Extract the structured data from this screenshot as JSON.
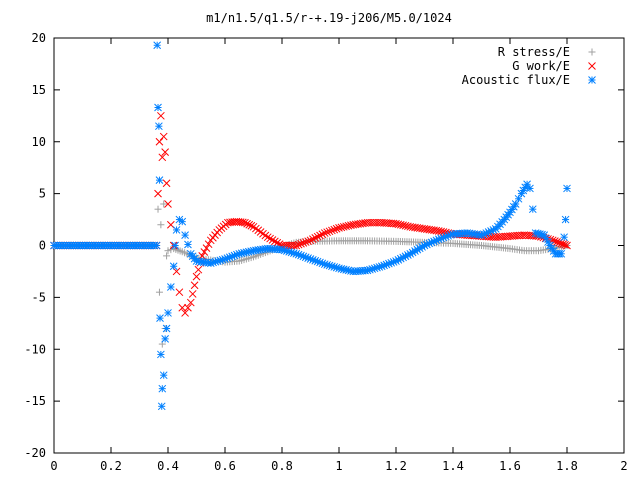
{
  "chart_data": {
    "type": "scatter",
    "title": "m1/n1.5/q1.5/r-+.19-j206/M5.0/1024",
    "xlim": [
      0,
      2
    ],
    "ylim": [
      -20,
      20
    ],
    "xticks": [
      "0",
      "0.2",
      "0.4",
      "0.6",
      "0.8",
      "1",
      "1.2",
      "1.4",
      "1.6",
      "1.8",
      "2"
    ],
    "yticks": [
      "20",
      "15",
      "10",
      "5",
      "0",
      "-5",
      "-10",
      "-15",
      "-20"
    ],
    "legend_position": "top-right",
    "grid": false,
    "series": [
      {
        "name": "R stress/E",
        "marker": "plus",
        "color": "#a0a0a0",
        "points": [
          [
            0.0,
            0
          ],
          [
            0.36,
            0
          ],
          [
            0.365,
            3.5
          ],
          [
            0.37,
            -4.5
          ],
          [
            0.375,
            2.0
          ],
          [
            0.38,
            -9.5
          ],
          [
            0.385,
            4.0
          ],
          [
            0.39,
            -8.0
          ],
          [
            0.395,
            -1.0
          ],
          [
            0.4,
            -0.5
          ],
          [
            0.42,
            -0.3
          ],
          [
            0.45,
            -0.6
          ],
          [
            0.5,
            -1.2
          ],
          [
            0.55,
            -1.4
          ],
          [
            0.6,
            -1.6
          ],
          [
            0.65,
            -1.5
          ],
          [
            0.7,
            -1.1
          ],
          [
            0.75,
            -0.6
          ],
          [
            0.8,
            -0.1
          ],
          [
            0.85,
            0.3
          ],
          [
            0.9,
            0.4
          ],
          [
            1.0,
            0.45
          ],
          [
            1.1,
            0.45
          ],
          [
            1.2,
            0.4
          ],
          [
            1.3,
            0.3
          ],
          [
            1.4,
            0.2
          ],
          [
            1.5,
            0.0
          ],
          [
            1.6,
            -0.3
          ],
          [
            1.65,
            -0.5
          ],
          [
            1.7,
            -0.5
          ],
          [
            1.75,
            -0.3
          ],
          [
            1.78,
            -0.1
          ],
          [
            1.8,
            0.0
          ]
        ]
      },
      {
        "name": "G work/E",
        "marker": "cross",
        "color": "#ff0000",
        "points": [
          [
            0.0,
            0
          ],
          [
            0.36,
            0
          ],
          [
            0.365,
            5.0
          ],
          [
            0.37,
            10.0
          ],
          [
            0.375,
            12.5
          ],
          [
            0.38,
            8.5
          ],
          [
            0.385,
            10.5
          ],
          [
            0.39,
            9.0
          ],
          [
            0.395,
            6.0
          ],
          [
            0.4,
            4.0
          ],
          [
            0.41,
            2.0
          ],
          [
            0.42,
            0.0
          ],
          [
            0.43,
            -2.5
          ],
          [
            0.44,
            -4.5
          ],
          [
            0.45,
            -6.0
          ],
          [
            0.46,
            -6.5
          ],
          [
            0.48,
            -5.5
          ],
          [
            0.5,
            -3.0
          ],
          [
            0.52,
            -1.0
          ],
          [
            0.55,
            0.5
          ],
          [
            0.58,
            1.5
          ],
          [
            0.61,
            2.2
          ],
          [
            0.64,
            2.3
          ],
          [
            0.67,
            2.2
          ],
          [
            0.7,
            1.8
          ],
          [
            0.75,
            0.8
          ],
          [
            0.8,
            0.0
          ],
          [
            0.85,
            0.0
          ],
          [
            0.9,
            0.5
          ],
          [
            0.95,
            1.2
          ],
          [
            1.0,
            1.7
          ],
          [
            1.05,
            2.0
          ],
          [
            1.1,
            2.2
          ],
          [
            1.15,
            2.2
          ],
          [
            1.2,
            2.1
          ],
          [
            1.25,
            1.8
          ],
          [
            1.3,
            1.6
          ],
          [
            1.35,
            1.4
          ],
          [
            1.4,
            1.1
          ],
          [
            1.45,
            1.0
          ],
          [
            1.5,
            0.9
          ],
          [
            1.55,
            0.8
          ],
          [
            1.6,
            0.9
          ],
          [
            1.65,
            1.0
          ],
          [
            1.7,
            0.9
          ],
          [
            1.75,
            0.5
          ],
          [
            1.78,
            0.2
          ],
          [
            1.8,
            0.0
          ]
        ]
      },
      {
        "name": "Acoustic flux/E",
        "marker": "star",
        "color": "#0080ff",
        "points": [
          [
            0.0,
            0
          ],
          [
            0.36,
            0
          ],
          [
            0.362,
            19.3
          ],
          [
            0.365,
            13.3
          ],
          [
            0.368,
            11.5
          ],
          [
            0.37,
            6.3
          ],
          [
            0.372,
            -7.0
          ],
          [
            0.375,
            -10.5
          ],
          [
            0.378,
            -15.5
          ],
          [
            0.38,
            -13.8
          ],
          [
            0.385,
            -12.5
          ],
          [
            0.39,
            -9.0
          ],
          [
            0.395,
            -8.0
          ],
          [
            0.4,
            -6.5
          ],
          [
            0.41,
            -4.0
          ],
          [
            0.42,
            -2.0
          ],
          [
            0.425,
            0.0
          ],
          [
            0.43,
            1.5
          ],
          [
            0.44,
            2.5
          ],
          [
            0.45,
            2.3
          ],
          [
            0.46,
            1.0
          ],
          [
            0.48,
            -0.8
          ],
          [
            0.5,
            -1.5
          ],
          [
            0.55,
            -1.7
          ],
          [
            0.6,
            -1.3
          ],
          [
            0.65,
            -0.8
          ],
          [
            0.7,
            -0.5
          ],
          [
            0.75,
            -0.3
          ],
          [
            0.8,
            -0.4
          ],
          [
            0.85,
            -0.8
          ],
          [
            0.9,
            -1.3
          ],
          [
            0.95,
            -1.8
          ],
          [
            1.0,
            -2.2
          ],
          [
            1.05,
            -2.5
          ],
          [
            1.1,
            -2.4
          ],
          [
            1.15,
            -2.0
          ],
          [
            1.2,
            -1.5
          ],
          [
            1.25,
            -0.8
          ],
          [
            1.3,
            0.0
          ],
          [
            1.35,
            0.6
          ],
          [
            1.4,
            1.1
          ],
          [
            1.45,
            1.2
          ],
          [
            1.5,
            1.0
          ],
          [
            1.55,
            1.6
          ],
          [
            1.58,
            2.5
          ],
          [
            1.6,
            3.2
          ],
          [
            1.62,
            4.0
          ],
          [
            1.64,
            5.0
          ],
          [
            1.66,
            5.9
          ],
          [
            1.67,
            5.5
          ],
          [
            1.68,
            3.5
          ],
          [
            1.69,
            1.2
          ],
          [
            1.72,
            1.0
          ],
          [
            1.74,
            0.0
          ],
          [
            1.76,
            -0.8
          ],
          [
            1.78,
            -0.8
          ],
          [
            1.79,
            0.8
          ],
          [
            1.795,
            2.5
          ],
          [
            1.8,
            5.5
          ]
        ]
      }
    ]
  }
}
